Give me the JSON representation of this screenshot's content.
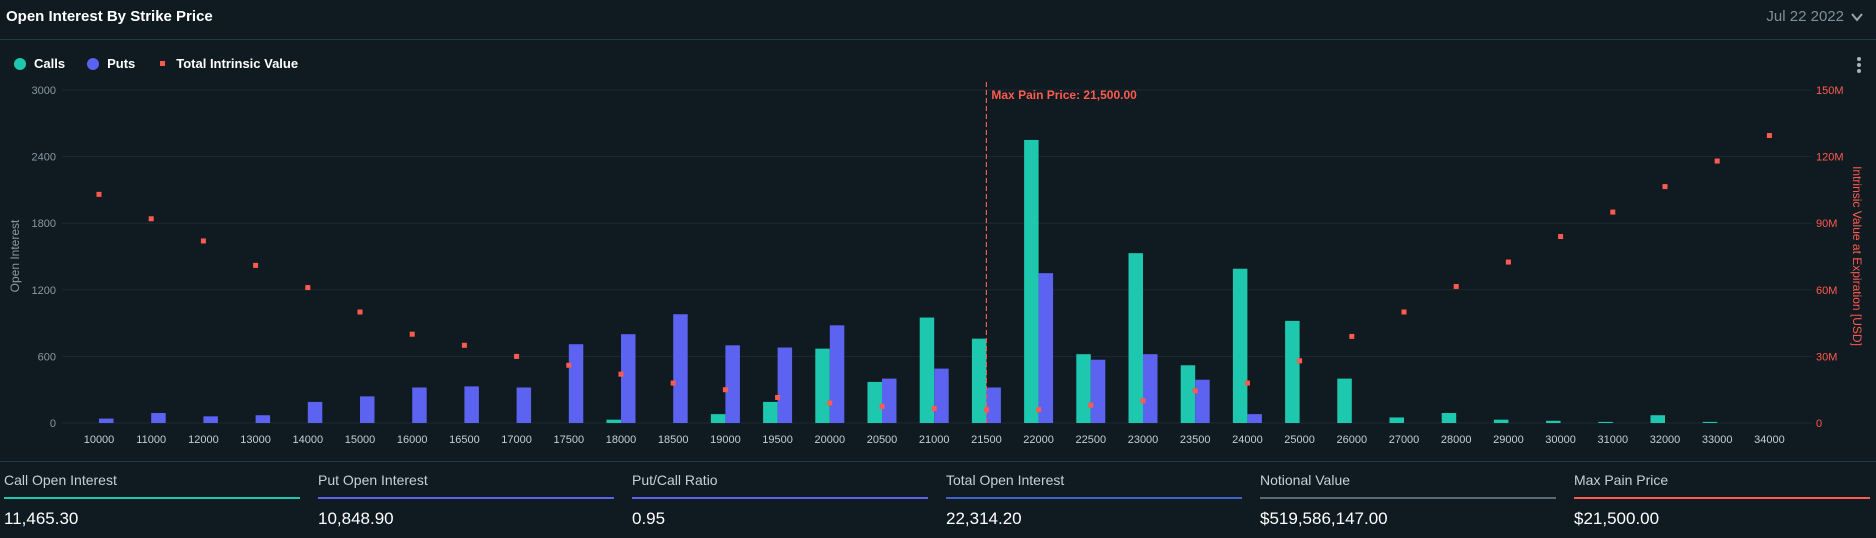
{
  "header": {
    "title": "Open Interest By Strike Price",
    "date": "Jul 22 2022"
  },
  "legend": {
    "calls": "Calls",
    "puts": "Puts",
    "intrinsic": "Total Intrinsic Value"
  },
  "colors": {
    "calls": "#1ec8ae",
    "puts": "#5b63f0",
    "intrinsic": "#ff5a4f",
    "grid": "#1c2b33",
    "axis_text": "#8a99a3"
  },
  "chart_data": {
    "type": "bar",
    "categories": [
      "10000",
      "11000",
      "12000",
      "13000",
      "14000",
      "15000",
      "16000",
      "16500",
      "17000",
      "17500",
      "18000",
      "18500",
      "19000",
      "19500",
      "20000",
      "20500",
      "21000",
      "21500",
      "22000",
      "22500",
      "23000",
      "23500",
      "24000",
      "25000",
      "26000",
      "27000",
      "28000",
      "29000",
      "30000",
      "31000",
      "32000",
      "33000",
      "34000"
    ],
    "series": [
      {
        "name": "Calls",
        "axis": "left",
        "values": [
          0,
          0,
          0,
          0,
          0,
          0,
          0,
          0,
          0,
          0,
          30,
          0,
          80,
          190,
          670,
          370,
          950,
          760,
          2550,
          620,
          1530,
          520,
          1390,
          920,
          400,
          50,
          90,
          30,
          20,
          10,
          70,
          10,
          0
        ]
      },
      {
        "name": "Puts",
        "axis": "left",
        "values": [
          40,
          90,
          60,
          70,
          190,
          240,
          320,
          330,
          320,
          710,
          800,
          980,
          700,
          680,
          880,
          400,
          490,
          320,
          1350,
          570,
          620,
          390,
          80,
          0,
          0,
          0,
          0,
          0,
          0,
          0,
          0,
          0,
          0
        ]
      },
      {
        "name": "Total Intrinsic Value",
        "axis": "right",
        "type": "scatter",
        "values": [
          103000000,
          92000000,
          82000000,
          71000000,
          61000000,
          50000000,
          40000000,
          35000000,
          30000000,
          26000000,
          22000000,
          18000000,
          15000000,
          11500000,
          9000000,
          7500000,
          6500000,
          6000000,
          6000000,
          8000000,
          10000000,
          14500000,
          18000000,
          28000000,
          39000000,
          50000000,
          61500000,
          72500000,
          84000000,
          95000000,
          106500000,
          118000000,
          129500000
        ]
      }
    ],
    "ylabel": "Open Interest",
    "y2label": "Intrinsic Value at Expiration [USD]",
    "ylim": [
      0,
      3000
    ],
    "y2lim": [
      0,
      150000000
    ],
    "yticks": [
      "0",
      "600",
      "1200",
      "1800",
      "2400",
      "3000"
    ],
    "y2ticks": [
      "0",
      "30M",
      "60M",
      "90M",
      "120M",
      "150M"
    ],
    "grid": true,
    "legend_position": "top-left",
    "max_pain": {
      "category": "21500",
      "label": "Max Pain Price: 21,500.00"
    }
  },
  "stats": [
    {
      "label": "Call Open Interest",
      "value": "11,465.30",
      "color": "#1ec8ae"
    },
    {
      "label": "Put Open Interest",
      "value": "10,848.90",
      "color": "#5b63f0"
    },
    {
      "label": "Put/Call Ratio",
      "value": "0.95",
      "color": "#5b63f0"
    },
    {
      "label": "Total Open Interest",
      "value": "22,314.20",
      "color": "#3f62c8"
    },
    {
      "label": "Notional Value",
      "value": "$519,586,147.00",
      "color": "#586a75"
    },
    {
      "label": "Max Pain Price",
      "value": "$21,500.00",
      "color": "#ff5a4f"
    }
  ]
}
